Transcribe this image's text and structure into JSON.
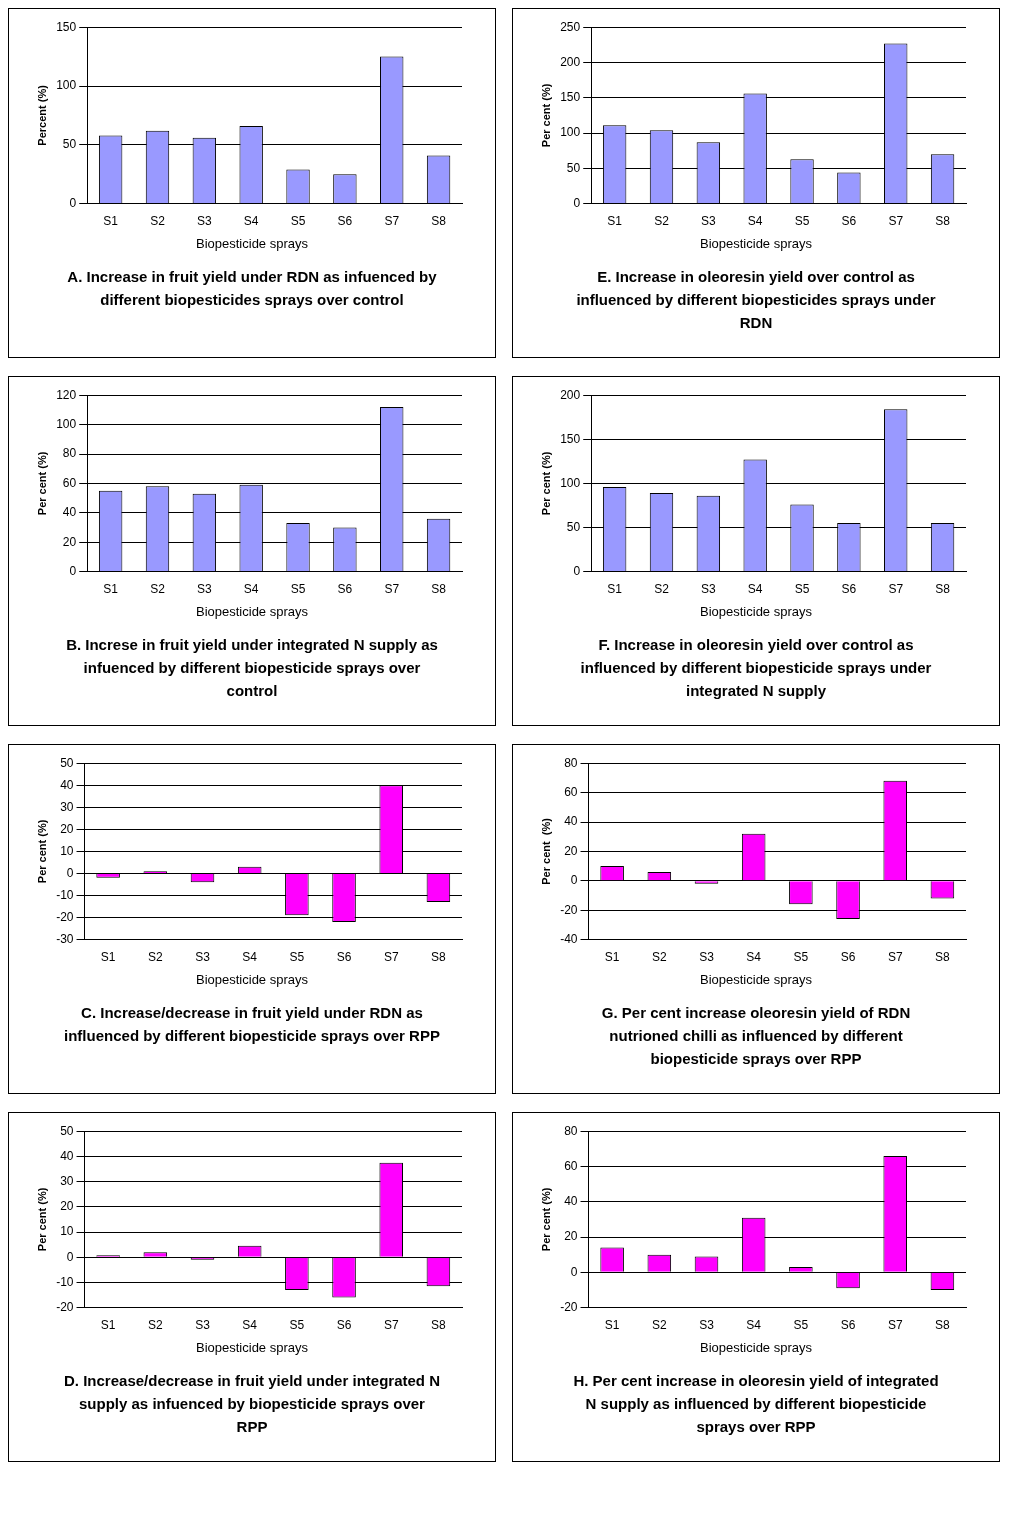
{
  "chart_data": [
    {
      "type": "bar",
      "title": "A. Increase in fruit yield under RDN as infuenced by different biopesticides sprays over control",
      "xlabel": "Biopesticide sprays",
      "ylabel": "Percent (%)",
      "categories": [
        "S1",
        "S2",
        "S3",
        "S4",
        "S5",
        "S6",
        "S7",
        "S8"
      ],
      "values": [
        58,
        62,
        56,
        66,
        29,
        25,
        125,
        41
      ],
      "color": "#9999ff",
      "ylim": [
        0,
        150
      ],
      "yticks": [
        0,
        50,
        100,
        150
      ],
      "grid": "y"
    },
    {
      "type": "bar",
      "title": "E. Increase in oleoresin yield  over control  as influenced by different biopesticides sprays under RDN",
      "xlabel": "Biopesticide sprays",
      "ylabel": "Per cent (%)",
      "categories": [
        "S1",
        "S2",
        "S3",
        "S4",
        "S5",
        "S6",
        "S7",
        "S8"
      ],
      "values": [
        111,
        104,
        87,
        156,
        63,
        44,
        227,
        70
      ],
      "color": "#9999ff",
      "ylim": [
        0,
        250
      ],
      "yticks": [
        0,
        50,
        100,
        150,
        200,
        250
      ],
      "grid": "y"
    },
    {
      "type": "bar",
      "title": "B. Increse in fruit yield under integrated N supply  as infuenced by different biopesticide sprays over control",
      "xlabel": "Biopesticide sprays",
      "ylabel": "Per cent (%)",
      "categories": [
        "S1",
        "S2",
        "S3",
        "S4",
        "S5",
        "S6",
        "S7",
        "S8"
      ],
      "values": [
        55,
        58,
        53,
        59,
        33,
        30,
        112,
        36
      ],
      "color": "#9999ff",
      "ylim": [
        0,
        120
      ],
      "yticks": [
        0,
        20,
        40,
        60,
        80,
        100,
        120
      ],
      "grid": "y"
    },
    {
      "type": "bar",
      "title": "F. Increase in oleoresin yield over control as influenced by different biopesticide sprays under integrated N supply",
      "xlabel": "Biopesticide sprays",
      "ylabel": "Per cent (%)",
      "categories": [
        "S1",
        "S2",
        "S3",
        "S4",
        "S5",
        "S6",
        "S7",
        "S8"
      ],
      "values": [
        96,
        89,
        86,
        127,
        76,
        55,
        184,
        55
      ],
      "color": "#9999ff",
      "ylim": [
        0,
        200
      ],
      "yticks": [
        0,
        50,
        100,
        150,
        200
      ],
      "grid": "y"
    },
    {
      "type": "bar",
      "title": "C. Increase/decrease in fruit yield under RDN as influenced by different biopesticide sprays over RPP",
      "xlabel": "Biopesticide sprays",
      "ylabel": "Per cent (%)",
      "categories": [
        "S1",
        "S2",
        "S3",
        "S4",
        "S5",
        "S6",
        "S7",
        "S8"
      ],
      "values": [
        -2,
        1,
        -4,
        3,
        -19,
        -22,
        40,
        -13
      ],
      "color": "#ff00ff",
      "ylim": [
        -30,
        50
      ],
      "yticks": [
        -30,
        -20,
        -10,
        0,
        10,
        20,
        30,
        40,
        50
      ],
      "grid": "y"
    },
    {
      "type": "bar",
      "title": "G. Per cent increase oleoresin yield of RDN nutrioned chilli as influenced by different biopesticide sprays over RPP",
      "xlabel": "Biopesticide sprays",
      "ylabel": "Per cent  (%)",
      "categories": [
        "S1",
        "S2",
        "S3",
        "S4",
        "S5",
        "S6",
        "S7",
        "S8"
      ],
      "values": [
        10,
        6,
        -2,
        32,
        -16,
        -26,
        68,
        -12
      ],
      "color": "#ff00ff",
      "ylim": [
        -40,
        80
      ],
      "yticks": [
        -40,
        -20,
        0,
        20,
        40,
        60,
        80
      ],
      "grid": "y"
    },
    {
      "type": "bar",
      "title": "D. Increase/decrease in fruit yield under integrated N supply as infuenced by biopesticide sprays over RPP",
      "xlabel": "Biopesticide sprays",
      "ylabel": "Per cent (%)",
      "categories": [
        "S1",
        "S2",
        "S3",
        "S4",
        "S5",
        "S6",
        "S7",
        "S8"
      ],
      "values": [
        0.8,
        2,
        -1,
        4.5,
        -13,
        -16,
        37.5,
        -11.5
      ],
      "color": "#ff00ff",
      "ylim": [
        -20,
        50
      ],
      "yticks": [
        -20,
        -10,
        0,
        10,
        20,
        30,
        40,
        50
      ],
      "grid": "y"
    },
    {
      "type": "bar",
      "title": "H. Per cent increase in oleoresin yield of integrated N supply as influenced by different biopesticide sprays over RPP",
      "xlabel": "Biopesticide sprays",
      "ylabel": "Per cent (%)",
      "categories": [
        "S1",
        "S2",
        "S3",
        "S4",
        "S5",
        "S6",
        "S7",
        "S8"
      ],
      "values": [
        14,
        10,
        9,
        31,
        3,
        -9,
        66,
        -10
      ],
      "color": "#ff00ff",
      "ylim": [
        -20,
        80
      ],
      "yticks": [
        -20,
        0,
        20,
        40,
        60,
        80
      ],
      "grid": "y"
    }
  ]
}
